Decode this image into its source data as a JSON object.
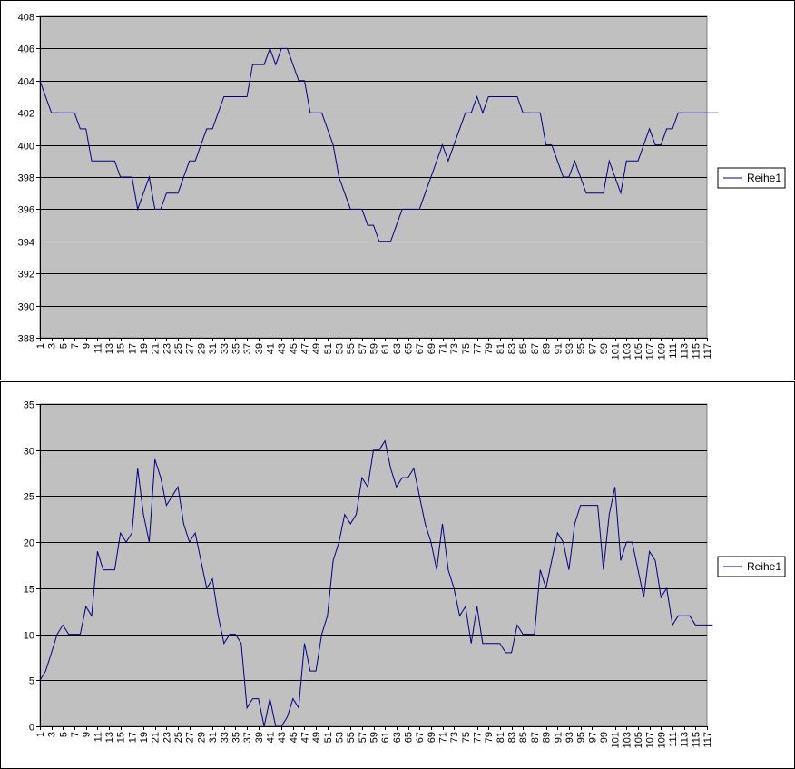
{
  "chart_data": [
    {
      "type": "line",
      "title": "",
      "xlabel": "",
      "ylabel": "",
      "ylim": [
        388,
        408
      ],
      "yticks": [
        388,
        390,
        392,
        394,
        396,
        398,
        400,
        402,
        404,
        406,
        408
      ],
      "xlim": [
        1,
        117
      ],
      "xtick_labels": [
        "1",
        "3",
        "5",
        "7",
        "9",
        "11",
        "13",
        "15",
        "17",
        "19",
        "21",
        "23",
        "25",
        "27",
        "29",
        "31",
        "33",
        "35",
        "37",
        "39",
        "41",
        "43",
        "45",
        "47",
        "49",
        "51",
        "53",
        "55",
        "57",
        "59",
        "61",
        "63",
        "65",
        "67",
        "69",
        "71",
        "73",
        "75",
        "77",
        "79",
        "81",
        "83",
        "85",
        "87",
        "89",
        "91",
        "93",
        "95",
        "97",
        "99",
        "101",
        "103",
        "105",
        "107",
        "109",
        "111",
        "113",
        "115",
        "117"
      ],
      "grid": "horizontal",
      "legend_position": "right",
      "colors": {
        "plot_background": "#c0c0c0",
        "line": "#000080",
        "grid": "#000000"
      },
      "series": [
        {
          "name": "Reihe1",
          "values": [
            404,
            403,
            402,
            402,
            402,
            402,
            402,
            401,
            401,
            399,
            399,
            399,
            399,
            399,
            398,
            398,
            398,
            396,
            397,
            398,
            396,
            396,
            397,
            397,
            397,
            398,
            399,
            399,
            400,
            401,
            401,
            402,
            403,
            403,
            403,
            403,
            403,
            405,
            405,
            405,
            406,
            405,
            406,
            406,
            405,
            404,
            404,
            402,
            402,
            402,
            401,
            400,
            398,
            397,
            396,
            396,
            396,
            395,
            395,
            394,
            394,
            394,
            395,
            396,
            396,
            396,
            396,
            397,
            398,
            399,
            400,
            399,
            400,
            401,
            402,
            402,
            403,
            402,
            403,
            403,
            403,
            403,
            403,
            403,
            402,
            402,
            402,
            402,
            400,
            400,
            399,
            398,
            398,
            399,
            398,
            397,
            397,
            397,
            397,
            399,
            398,
            397,
            399,
            399,
            399,
            400,
            401,
            400,
            400,
            401,
            401,
            402,
            402,
            402,
            402,
            402,
            402,
            402,
            402
          ]
        }
      ]
    },
    {
      "type": "line",
      "title": "",
      "xlabel": "",
      "ylabel": "",
      "ylim": [
        0,
        35
      ],
      "yticks": [
        0,
        5,
        10,
        15,
        20,
        25,
        30,
        35
      ],
      "xlim": [
        1,
        117
      ],
      "xtick_labels": [
        "1",
        "3",
        "5",
        "7",
        "9",
        "11",
        "13",
        "15",
        "17",
        "19",
        "21",
        "23",
        "25",
        "27",
        "29",
        "31",
        "33",
        "35",
        "37",
        "39",
        "41",
        "43",
        "45",
        "47",
        "49",
        "51",
        "53",
        "55",
        "57",
        "59",
        "61",
        "63",
        "65",
        "67",
        "69",
        "71",
        "73",
        "75",
        "77",
        "79",
        "81",
        "83",
        "85",
        "87",
        "89",
        "91",
        "93",
        "95",
        "97",
        "99",
        "101",
        "103",
        "105",
        "107",
        "109",
        "111",
        "113",
        "115",
        "117"
      ],
      "grid": "horizontal",
      "legend_position": "right",
      "colors": {
        "plot_background": "#c0c0c0",
        "line": "#000080",
        "grid": "#000000"
      },
      "series": [
        {
          "name": "Reihe1",
          "values": [
            5,
            6,
            8,
            10,
            11,
            10,
            10,
            10,
            13,
            12,
            19,
            17,
            17,
            17,
            21,
            20,
            21,
            28,
            23,
            20,
            29,
            27,
            24,
            25,
            26,
            22,
            20,
            21,
            18,
            15,
            16,
            12,
            9,
            10,
            10,
            9,
            2,
            3,
            3,
            0,
            3,
            0,
            0,
            1,
            3,
            2,
            9,
            6,
            6,
            10,
            12,
            18,
            20,
            23,
            22,
            23,
            27,
            26,
            30,
            30,
            31,
            28,
            26,
            27,
            27,
            28,
            25,
            22,
            20,
            17,
            22,
            17,
            15,
            12,
            13,
            9,
            13,
            9,
            9,
            9,
            9,
            8,
            8,
            11,
            10,
            10,
            10,
            17,
            15,
            18,
            21,
            20,
            17,
            22,
            24,
            24,
            24,
            24,
            17,
            23,
            26,
            18,
            20,
            20,
            17,
            14,
            19,
            18,
            14,
            15,
            11,
            12,
            12,
            12,
            11,
            11,
            11,
            11
          ]
        }
      ]
    }
  ]
}
